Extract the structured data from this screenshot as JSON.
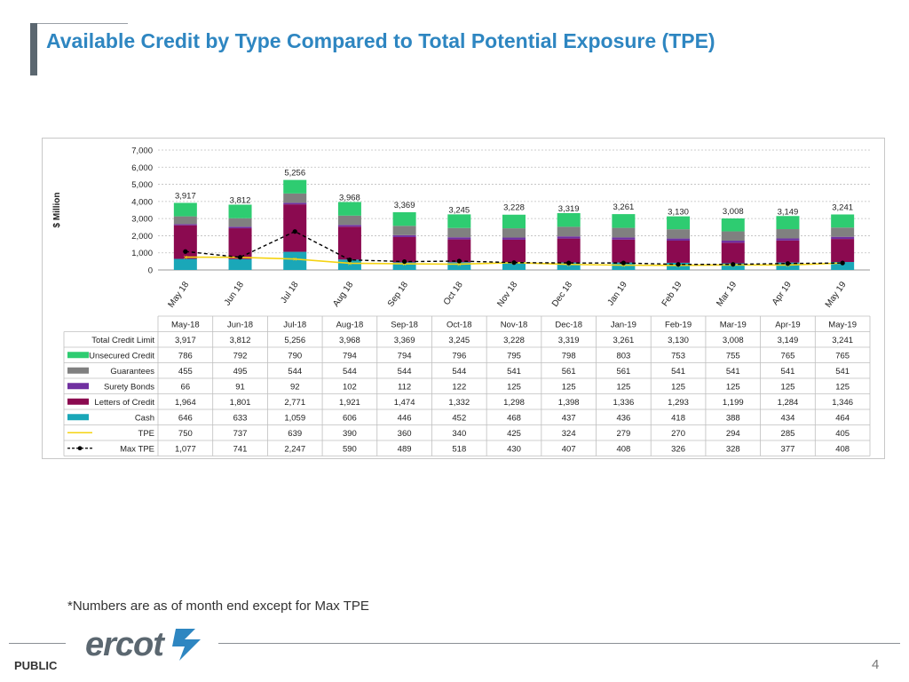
{
  "page": {
    "title": "Available Credit by Type Compared to Total Potential Exposure (TPE)",
    "footnote": "*Numbers are as of month end except for Max TPE",
    "footer_label": "PUBLIC",
    "page_number": "4",
    "logo_text": "ercot"
  },
  "colors": {
    "title": "#2e86c1",
    "unsecured": "#2ecc71",
    "guarantees": "#808080",
    "surety": "#7030a0",
    "letters": "#8b0a50",
    "cash": "#1aa7b8",
    "tpe": "#f5d312",
    "max_tpe": "#000000"
  },
  "chart_data": {
    "type": "bar",
    "stacked": true,
    "ylabel": "$ Million",
    "ylim": [
      0,
      7000
    ],
    "yticks": [
      "0",
      "1,000",
      "2,000",
      "3,000",
      "4,000",
      "5,000",
      "6,000",
      "7,000"
    ],
    "ytick_values": [
      0,
      1000,
      2000,
      3000,
      4000,
      5000,
      6000,
      7000
    ],
    "grid": true,
    "categories": [
      "May 18",
      "Jun 18",
      "Jul 18",
      "Aug 18",
      "Sep 18",
      "Oct 18",
      "Nov 18",
      "Dec 18",
      "Jan 19",
      "Feb 19",
      "Mar 19",
      "Apr 19",
      "May 19"
    ],
    "table_headers": [
      "May-18",
      "Jun-18",
      "Jul-18",
      "Aug-18",
      "Sep-18",
      "Oct-18",
      "Nov-18",
      "Dec-18",
      "Jan-19",
      "Feb-19",
      "Mar-19",
      "Apr-19",
      "May-19"
    ],
    "total_values": [
      3917,
      3812,
      5256,
      3968,
      3369,
      3245,
      3228,
      3319,
      3261,
      3130,
      3008,
      3149,
      3241
    ],
    "total_labels": [
      "3,917",
      "3,812",
      "5,256",
      "3,968",
      "3,369",
      "3,245",
      "3,228",
      "3,319",
      "3,261",
      "3,130",
      "3,008",
      "3,149",
      "3,241"
    ],
    "rows": [
      {
        "name": "Total Credit Limit",
        "key": "total",
        "marker": "none",
        "values": [
          "3,917",
          "3,812",
          "5,256",
          "3,968",
          "3,369",
          "3,245",
          "3,228",
          "3,319",
          "3,261",
          "3,130",
          "3,008",
          "3,149",
          "3,241"
        ]
      },
      {
        "name": "Unsecured Credit",
        "key": "unsecured",
        "marker": "box",
        "values": [
          "786",
          "792",
          "790",
          "794",
          "794",
          "796",
          "795",
          "798",
          "803",
          "753",
          "755",
          "765",
          "765"
        ]
      },
      {
        "name": "Guarantees",
        "key": "guarantees",
        "marker": "box",
        "values": [
          "455",
          "495",
          "544",
          "544",
          "544",
          "544",
          "541",
          "561",
          "561",
          "541",
          "541",
          "541",
          "541"
        ]
      },
      {
        "name": "Surety Bonds",
        "key": "surety",
        "marker": "box",
        "values": [
          "66",
          "91",
          "92",
          "102",
          "112",
          "122",
          "125",
          "125",
          "125",
          "125",
          "125",
          "125",
          "125"
        ]
      },
      {
        "name": "Letters of Credit",
        "key": "letters",
        "marker": "box",
        "values": [
          "1,964",
          "1,801",
          "2,771",
          "1,921",
          "1,474",
          "1,332",
          "1,298",
          "1,398",
          "1,336",
          "1,293",
          "1,199",
          "1,284",
          "1,346"
        ]
      },
      {
        "name": "Cash",
        "key": "cash",
        "marker": "box",
        "values": [
          "646",
          "633",
          "1,059",
          "606",
          "446",
          "452",
          "468",
          "437",
          "436",
          "418",
          "388",
          "434",
          "464"
        ]
      },
      {
        "name": "TPE",
        "key": "tpe",
        "marker": "line",
        "values": [
          "750",
          "737",
          "639",
          "390",
          "360",
          "340",
          "425",
          "324",
          "279",
          "270",
          "294",
          "285",
          "405"
        ]
      },
      {
        "name": "Max TPE",
        "key": "max_tpe",
        "marker": "dashline",
        "values": [
          "1,077",
          "741",
          "2,247",
          "590",
          "489",
          "518",
          "430",
          "407",
          "408",
          "326",
          "328",
          "377",
          "408"
        ]
      }
    ],
    "series": [
      {
        "name": "Cash",
        "key": "cash",
        "values": [
          646,
          633,
          1059,
          606,
          446,
          452,
          468,
          437,
          436,
          418,
          388,
          434,
          464
        ]
      },
      {
        "name": "Letters of Credit",
        "key": "letters",
        "values": [
          1964,
          1801,
          2771,
          1921,
          1474,
          1332,
          1298,
          1398,
          1336,
          1293,
          1199,
          1284,
          1346
        ]
      },
      {
        "name": "Surety Bonds",
        "key": "surety",
        "values": [
          66,
          91,
          92,
          102,
          112,
          122,
          125,
          125,
          125,
          125,
          125,
          125,
          125
        ]
      },
      {
        "name": "Guarantees",
        "key": "guarantees",
        "values": [
          455,
          495,
          544,
          544,
          544,
          544,
          541,
          561,
          561,
          541,
          541,
          541,
          541
        ]
      },
      {
        "name": "Unsecured Credit",
        "key": "unsecured",
        "values": [
          786,
          792,
          790,
          794,
          794,
          796,
          795,
          798,
          803,
          753,
          755,
          765,
          765
        ]
      }
    ],
    "lines": [
      {
        "name": "TPE",
        "key": "tpe",
        "values": [
          750,
          737,
          639,
          390,
          360,
          340,
          425,
          324,
          279,
          270,
          294,
          285,
          405
        ]
      },
      {
        "name": "Max TPE",
        "key": "max_tpe",
        "values": [
          1077,
          741,
          2247,
          590,
          489,
          518,
          430,
          407,
          408,
          326,
          328,
          377,
          408
        ]
      }
    ]
  }
}
